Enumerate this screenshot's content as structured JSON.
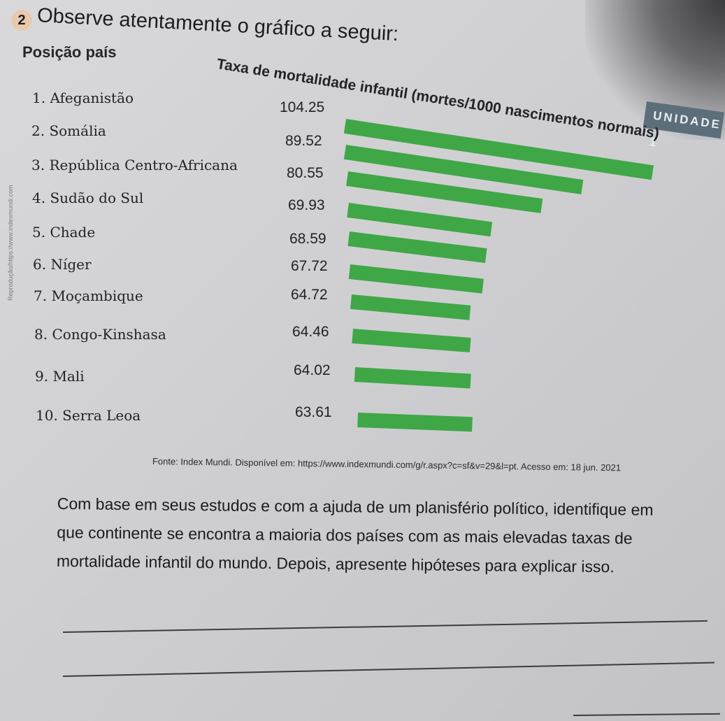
{
  "unit_tag": "UNIDADE 1",
  "side_credit": "Reprodução/https://www.indexmundi.com",
  "question_number": "2",
  "question_prompt": "Observe atentamente o gráfico a seguir:",
  "column_header": "Posição país",
  "chart_data": {
    "type": "bar",
    "orientation": "horizontal",
    "title": "Taxa de mortalidade infantil (mortes/1000 nascimentos normais)",
    "categories": [
      "1. Afeganistão",
      "2. Somália",
      "3. República Centro-Africana",
      "4. Sudão do Sul",
      "5. Chade",
      "6. Níger",
      "7. Moçambique",
      "8. Congo-Kinshasa",
      "9. Mali",
      "10. Serra Leoa"
    ],
    "values": [
      104.25,
      89.52,
      80.55,
      69.93,
      68.59,
      67.72,
      64.72,
      64.46,
      64.02,
      63.61
    ],
    "value_labels": [
      "104.25",
      "89.52",
      "80.55",
      "69.93",
      "68.59",
      "67.72",
      "64.72",
      "64.46",
      "64.02",
      "63.61"
    ],
    "bar_color": "#3fa746"
  },
  "source_text": "Fonte: Index Mundi. Disponível em: https://www.indexmundi.com/g/r.aspx?c=sf&v=29&l=pt. Acesso em: 18 jun. 2021",
  "question_text": {
    "line1": "Com base em seus estudos e com a ajuda de um planisfério político, identifique em",
    "line2": "que continente se encontra a maioria dos países com as mais elevadas taxas de",
    "line3": "mortalidade infantil do mundo. Depois, apresente hipóteses para explicar isso."
  }
}
